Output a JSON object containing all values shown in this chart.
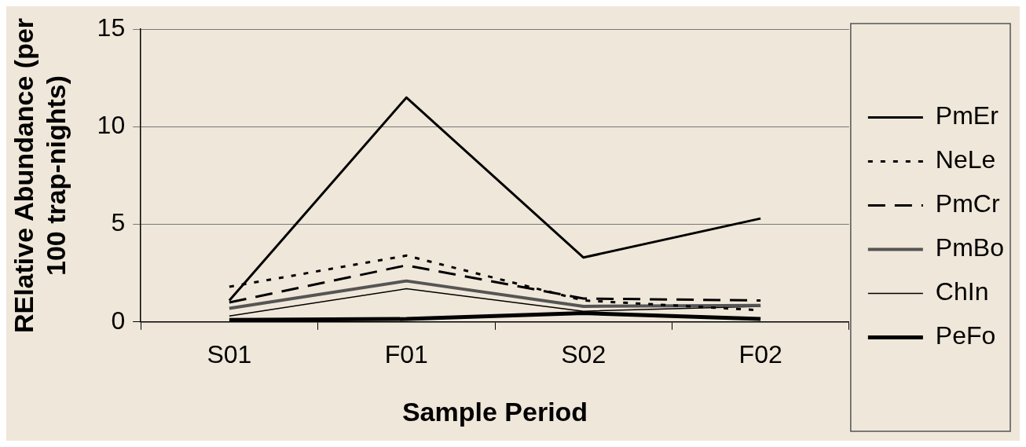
{
  "chart_data": {
    "type": "line",
    "xlabel": "Sample Period",
    "ylabel": "RElative Abundance (per 100 trap-nights)",
    "categories": [
      "S01",
      "F01",
      "S02",
      "F02"
    ],
    "ylim": [
      0,
      15
    ],
    "yticks": [
      0,
      5,
      10,
      15
    ],
    "grid": "y",
    "legend": "right",
    "marker": "none",
    "series": [
      {
        "name": "PmEr",
        "color": "#000000",
        "line_style": "solid",
        "values": [
          1.1,
          11.5,
          3.3,
          5.3
        ]
      },
      {
        "name": "NeLe",
        "color": "#000000",
        "line_style": "dotted",
        "values": [
          1.8,
          3.4,
          1.1,
          0.6
        ]
      },
      {
        "name": "PmCr",
        "color": "#000000",
        "line_style": "dashed",
        "values": [
          1.0,
          2.9,
          1.2,
          1.1
        ]
      },
      {
        "name": "PmBo",
        "color": "#555555",
        "line_style": "solid",
        "values": [
          0.7,
          2.1,
          0.8,
          0.85
        ]
      },
      {
        "name": "ChIn",
        "color": "#000000",
        "line_style": "solid",
        "values": [
          0.3,
          1.7,
          0.55,
          0.8
        ]
      },
      {
        "name": "PeFo",
        "color": "#000000",
        "line_style": "solid",
        "values": [
          0.1,
          0.15,
          0.45,
          0.15
        ]
      }
    ]
  }
}
